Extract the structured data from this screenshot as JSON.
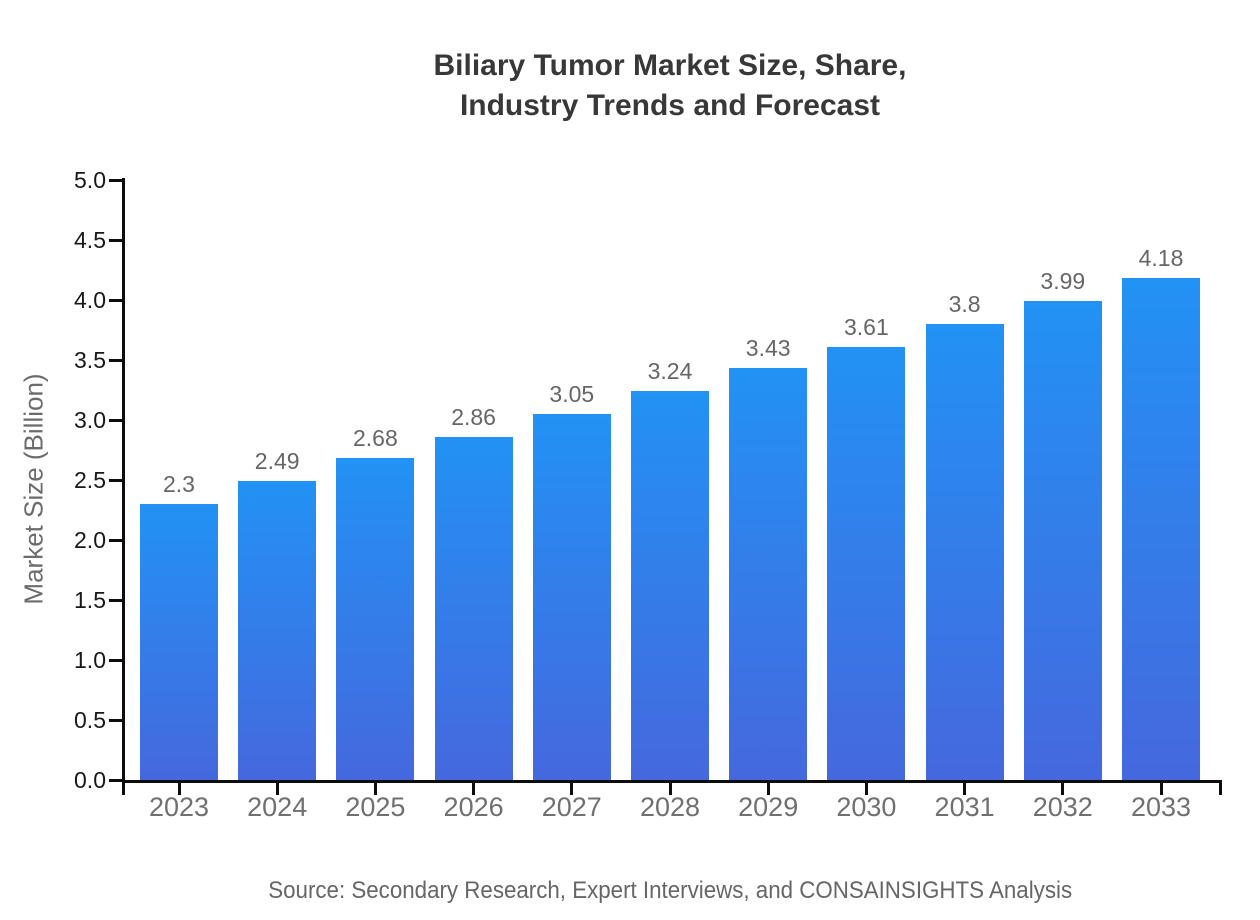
{
  "chart_data": {
    "type": "bar",
    "title": "Biliary Tumor Market Size, Share,\nIndustry Trends and Forecast",
    "categories": [
      "2023",
      "2024",
      "2025",
      "2026",
      "2027",
      "2028",
      "2029",
      "2030",
      "2031",
      "2032",
      "2033"
    ],
    "values": [
      2.3,
      2.49,
      2.68,
      2.86,
      3.05,
      3.24,
      3.43,
      3.61,
      3.8,
      3.99,
      4.18
    ],
    "value_labels": [
      "2.3",
      "2.49",
      "2.68",
      "2.86",
      "3.05",
      "3.24",
      "3.43",
      "3.61",
      "3.8",
      "3.99",
      "4.18"
    ],
    "xlabel": "",
    "ylabel": "Market Size (Billion)",
    "ylim": [
      0,
      5
    ],
    "ytick_step": 0.5,
    "ytick_labels": [
      "0.0",
      "0.5",
      "1.0",
      "1.5",
      "2.0",
      "2.5",
      "3.0",
      "3.5",
      "4.0",
      "4.5",
      "5.0"
    ],
    "grid": false,
    "legend": false,
    "source": "Source: Secondary Research, Expert Interviews, and CONSAINSIGHTS Analysis",
    "colors": {
      "bar_gradient_top": "#2292f4",
      "bar_gradient_bottom": "#4568de",
      "axis": "#0d0d0d",
      "title": "#383838",
      "ytick_label": "#181818",
      "category_label": "#707070",
      "value_label": "#666666",
      "ylabel": "#6b6b6b",
      "source": "#666666",
      "background": "#ffffff"
    }
  }
}
